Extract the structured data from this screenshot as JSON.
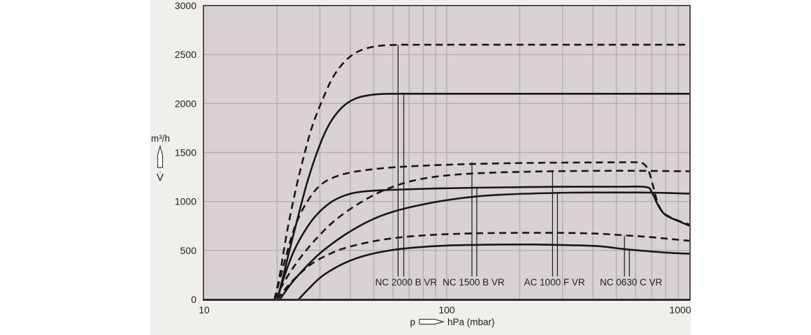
{
  "figure": {
    "y_unit": "m³/h",
    "y_symbol": "V̇",
    "x_prefix": "p",
    "x_suffix": "hPa (mbar)"
  },
  "chart_data": {
    "type": "line",
    "title": "",
    "x_axis": {
      "label": "p → hPa (mbar)",
      "scale": "log",
      "range": [
        10,
        1000
      ],
      "major_ticks": [
        10,
        100,
        1000
      ],
      "tick_labels": [
        "10",
        "100",
        "1000"
      ],
      "gridlines_hPa": [
        20,
        30,
        40,
        50,
        60,
        70,
        80,
        90,
        100,
        200,
        300,
        400,
        500,
        600,
        700,
        800,
        900
      ]
    },
    "y_axis": {
      "label": "V̇ (m³/h)",
      "range": [
        0,
        3000
      ],
      "ticks": [
        0,
        500,
        1000,
        1500,
        2000,
        2500,
        3000
      ],
      "tick_labels": [
        "0",
        "500",
        "1000",
        "1500",
        "2000",
        "2500",
        "3000"
      ],
      "gridlines": [
        500,
        1000,
        1500,
        2000,
        2500
      ]
    },
    "grid": true,
    "legend": "none",
    "series": [
      {
        "name": "NC 2000 B VR (dashed)",
        "model": "NC 2000 B VR",
        "style": "dashed",
        "points": [
          [
            19.5,
            0
          ],
          [
            20.5,
            250
          ],
          [
            22,
            700
          ],
          [
            24,
            1150
          ],
          [
            26,
            1500
          ],
          [
            28,
            1780
          ],
          [
            31,
            2060
          ],
          [
            34,
            2270
          ],
          [
            38,
            2430
          ],
          [
            43,
            2530
          ],
          [
            50,
            2580
          ],
          [
            60,
            2598
          ],
          [
            80,
            2600
          ],
          [
            200,
            2600
          ],
          [
            1000,
            2600
          ]
        ]
      },
      {
        "name": "NC 2000 B VR (solid)",
        "model": "NC 2000 B VR",
        "style": "solid",
        "points": [
          [
            20,
            0
          ],
          [
            21,
            200
          ],
          [
            23,
            600
          ],
          [
            25,
            950
          ],
          [
            27,
            1250
          ],
          [
            30,
            1580
          ],
          [
            33,
            1800
          ],
          [
            37,
            1960
          ],
          [
            42,
            2050
          ],
          [
            48,
            2085
          ],
          [
            55,
            2098
          ],
          [
            70,
            2100
          ],
          [
            200,
            2100
          ],
          [
            1000,
            2100
          ]
        ]
      },
      {
        "name": "NC 1500 B VR (dashed)",
        "model": "NC 1500 B VR",
        "style": "dashed",
        "points": [
          [
            19.5,
            0
          ],
          [
            21,
            300
          ],
          [
            23,
            650
          ],
          [
            25,
            880
          ],
          [
            28,
            1080
          ],
          [
            31,
            1190
          ],
          [
            35,
            1255
          ],
          [
            40,
            1295
          ],
          [
            48,
            1325
          ],
          [
            60,
            1348
          ],
          [
            80,
            1365
          ],
          [
            110,
            1378
          ],
          [
            160,
            1388
          ],
          [
            250,
            1395
          ],
          [
            400,
            1398
          ],
          [
            600,
            1400
          ],
          [
            640,
            1392
          ],
          [
            675,
            1330
          ],
          [
            705,
            1180
          ],
          [
            735,
            1010
          ],
          [
            765,
            915
          ],
          [
            800,
            865
          ],
          [
            860,
            825
          ],
          [
            930,
            790
          ],
          [
            1000,
            765
          ]
        ]
      },
      {
        "name": "NC 1500 B VR (solid)",
        "model": "NC 1500 B VR",
        "style": "solid",
        "points": [
          [
            20,
            0
          ],
          [
            21.5,
            250
          ],
          [
            23.5,
            500
          ],
          [
            26,
            700
          ],
          [
            29,
            860
          ],
          [
            33,
            985
          ],
          [
            37,
            1050
          ],
          [
            42,
            1090
          ],
          [
            50,
            1110
          ],
          [
            65,
            1122
          ],
          [
            90,
            1132
          ],
          [
            130,
            1140
          ],
          [
            200,
            1146
          ],
          [
            300,
            1150
          ],
          [
            500,
            1150
          ],
          [
            660,
            1148
          ],
          [
            700,
            1095
          ],
          [
            730,
            1000
          ],
          [
            760,
            920
          ],
          [
            795,
            865
          ],
          [
            840,
            832
          ],
          [
            900,
            800
          ],
          [
            1000,
            752
          ]
        ]
      },
      {
        "name": "AC 1000 F VR (dashed)",
        "model": "AC 1000 F VR",
        "style": "dashed",
        "points": [
          [
            19.5,
            0
          ],
          [
            22,
            230
          ],
          [
            25,
            430
          ],
          [
            29,
            620
          ],
          [
            34,
            790
          ],
          [
            41,
            940
          ],
          [
            50,
            1065
          ],
          [
            60,
            1150
          ],
          [
            72,
            1210
          ],
          [
            88,
            1250
          ],
          [
            110,
            1275
          ],
          [
            145,
            1292
          ],
          [
            200,
            1302
          ],
          [
            300,
            1310
          ],
          [
            500,
            1313
          ],
          [
            700,
            1312
          ],
          [
            1000,
            1308
          ]
        ]
      },
      {
        "name": "AC 1000 F VR (solid)",
        "model": "AC 1000 F VR",
        "style": "solid",
        "points": [
          [
            20.5,
            0
          ],
          [
            23,
            170
          ],
          [
            26,
            320
          ],
          [
            30,
            470
          ],
          [
            36,
            620
          ],
          [
            43,
            740
          ],
          [
            52,
            840
          ],
          [
            63,
            910
          ],
          [
            78,
            965
          ],
          [
            98,
            1010
          ],
          [
            125,
            1045
          ],
          [
            165,
            1068
          ],
          [
            230,
            1082
          ],
          [
            330,
            1090
          ],
          [
            500,
            1092
          ],
          [
            700,
            1090
          ],
          [
            1000,
            1080
          ]
        ]
      },
      {
        "name": "NC 0630 C VR (dashed)",
        "model": "NC 0630 C VR",
        "style": "dashed",
        "points": [
          [
            20,
            0
          ],
          [
            22,
            130
          ],
          [
            25,
            270
          ],
          [
            28,
            370
          ],
          [
            32,
            450
          ],
          [
            37,
            515
          ],
          [
            44,
            565
          ],
          [
            53,
            605
          ],
          [
            65,
            635
          ],
          [
            82,
            655
          ],
          [
            105,
            668
          ],
          [
            140,
            676
          ],
          [
            200,
            680
          ],
          [
            300,
            679
          ],
          [
            420,
            671
          ],
          [
            560,
            652
          ],
          [
            700,
            635
          ],
          [
            850,
            615
          ],
          [
            1000,
            598
          ]
        ]
      },
      {
        "name": "NC 0630 C VR (solid)",
        "model": "NC 0630 C VR",
        "style": "solid",
        "points": [
          [
            24.5,
            0
          ],
          [
            27,
            110
          ],
          [
            30,
            220
          ],
          [
            34,
            310
          ],
          [
            39,
            385
          ],
          [
            45,
            440
          ],
          [
            53,
            482
          ],
          [
            63,
            512
          ],
          [
            76,
            532
          ],
          [
            95,
            547
          ],
          [
            120,
            555
          ],
          [
            165,
            560
          ],
          [
            240,
            560
          ],
          [
            330,
            553
          ],
          [
            430,
            542
          ],
          [
            545,
            512
          ],
          [
            650,
            495
          ],
          [
            800,
            478
          ],
          [
            1000,
            466
          ]
        ]
      }
    ],
    "annotations": [
      {
        "label": "NC 2000 B VR",
        "label_x_hPa": 68,
        "leaders": [
          {
            "x_hPa": 63,
            "to_value": 2600
          },
          {
            "x_hPa": 66.5,
            "to_value": 2100
          }
        ]
      },
      {
        "label": "NC 1500 B VR",
        "label_x_hPa": 129,
        "leaders": [
          {
            "x_hPa": 127,
            "to_value": 1400
          },
          {
            "x_hPa": 133,
            "to_value": 1150
          }
        ]
      },
      {
        "label": "AC 1000 F VR",
        "label_x_hPa": 278,
        "leaders": [
          {
            "x_hPa": 273,
            "to_value": 1312
          },
          {
            "x_hPa": 286,
            "to_value": 1092
          }
        ]
      },
      {
        "label": "NC 0630 C VR",
        "label_x_hPa": 575,
        "leaders": [
          {
            "x_hPa": 540,
            "to_value": 650
          },
          {
            "x_hPa": 566,
            "to_value": 505
          }
        ]
      }
    ],
    "colors": {
      "panel_bg": "#f0efec",
      "plot_bg": "#dad1d3",
      "grid": "#b3aeb0",
      "border": "#5c4a53",
      "axis_dark": "#2a2127",
      "curve": "#161616",
      "text": "#1d1d1d"
    }
  }
}
